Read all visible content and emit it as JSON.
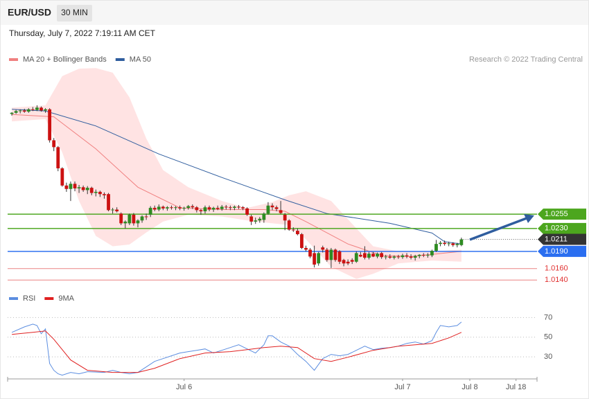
{
  "header": {
    "symbol": "EUR/USD",
    "timeframe": "30 MIN",
    "timestamp": "Thursday, July 7, 2022 7:19:11 AM CET",
    "source": "Research © 2022 Trading Central"
  },
  "chart_data": [
    {
      "type": "candlestick",
      "up_color": "#2e8b22",
      "down_color": "#cc1111",
      "xlim": [
        -1,
        125
      ],
      "ylim": [
        1.0127,
        1.0514
      ],
      "candles": [
        [
          1.043,
          1.0433,
          1.0427,
          1.0432
        ],
        [
          1.0432,
          1.0437,
          1.043,
          1.0435
        ],
        [
          1.0435,
          1.0438,
          1.0431,
          1.0436
        ],
        [
          1.0436,
          1.0439,
          1.0432,
          1.0434
        ],
        [
          1.0434,
          1.044,
          1.0432,
          1.0438
        ],
        [
          1.0438,
          1.0442,
          1.0435,
          1.0437
        ],
        [
          1.0437,
          1.0445,
          1.0435,
          1.0441
        ],
        [
          1.0441,
          1.0443,
          1.0434,
          1.0436
        ],
        [
          1.0436,
          1.044,
          1.0432,
          1.0438
        ],
        [
          1.0438,
          1.044,
          1.038,
          1.0384
        ],
        [
          1.0384,
          1.0388,
          1.0365,
          1.0372
        ],
        [
          1.0372,
          1.0374,
          1.033,
          1.0335
        ],
        [
          1.0335,
          1.0337,
          1.0303,
          1.0305
        ],
        [
          1.0305,
          1.031,
          1.0294,
          1.0299
        ],
        [
          1.0299,
          1.0312,
          1.0278,
          1.0308
        ],
        [
          1.0308,
          1.0312,
          1.0295,
          1.03
        ],
        [
          1.03,
          1.0306,
          1.0292,
          1.0302
        ],
        [
          1.0302,
          1.0305,
          1.0294,
          1.0297
        ],
        [
          1.0297,
          1.0304,
          1.029,
          1.0301
        ],
        [
          1.0301,
          1.0303,
          1.0288,
          1.0292
        ],
        [
          1.0292,
          1.0298,
          1.0286,
          1.0294
        ],
        [
          1.0294,
          1.0296,
          1.0285,
          1.029
        ],
        [
          1.029,
          1.0293,
          1.0282,
          1.0288
        ],
        [
          1.029,
          1.0292,
          1.026,
          1.0262
        ],
        [
          1.0262,
          1.0266,
          1.0256,
          1.0263
        ],
        [
          1.0263,
          1.0267,
          1.0258,
          1.026
        ],
        [
          1.0256,
          1.0258,
          1.0236,
          1.0239
        ],
        [
          1.0239,
          1.0244,
          1.023,
          1.0242
        ],
        [
          1.0239,
          1.0256,
          1.0236,
          1.0254
        ],
        [
          1.0254,
          1.0257,
          1.0235,
          1.0239
        ],
        [
          1.0239,
          1.0246,
          1.0232,
          1.0244
        ],
        [
          1.0244,
          1.0253,
          1.024,
          1.0251
        ],
        [
          1.0251,
          1.0256,
          1.0245,
          1.025
        ],
        [
          1.0254,
          1.0269,
          1.025,
          1.0266
        ],
        [
          1.0266,
          1.027,
          1.026,
          1.0263
        ],
        [
          1.0263,
          1.0272,
          1.026,
          1.0268
        ],
        [
          1.0268,
          1.027,
          1.0262,
          1.0265
        ],
        [
          1.0265,
          1.0269,
          1.0261,
          1.0267
        ],
        [
          1.0267,
          1.027,
          1.0263,
          1.0266
        ],
        [
          1.0266,
          1.0269,
          1.0262,
          1.0267
        ],
        [
          1.0267,
          1.027,
          1.0262,
          1.0265
        ],
        [
          1.0265,
          1.0268,
          1.0261,
          1.0266
        ],
        [
          1.0266,
          1.0271,
          1.0263,
          1.0269
        ],
        [
          1.0269,
          1.0272,
          1.0264,
          1.0267
        ],
        [
          1.0267,
          1.0269,
          1.0258,
          1.0262
        ],
        [
          1.0262,
          1.0264,
          1.0254,
          1.026
        ],
        [
          1.026,
          1.027,
          1.0256,
          1.0267
        ],
        [
          1.0267,
          1.027,
          1.026,
          1.0263
        ],
        [
          1.0263,
          1.0268,
          1.0259,
          1.0266
        ],
        [
          1.0266,
          1.027,
          1.0262,
          1.0264
        ],
        [
          1.0264,
          1.0271,
          1.0261,
          1.0268
        ],
        [
          1.0268,
          1.0271,
          1.0263,
          1.0267
        ],
        [
          1.0267,
          1.027,
          1.0262,
          1.0266
        ],
        [
          1.0266,
          1.027,
          1.0262,
          1.0268
        ],
        [
          1.0268,
          1.0271,
          1.0264,
          1.0267
        ],
        [
          1.0267,
          1.0269,
          1.0262,
          1.0265
        ],
        [
          1.0265,
          1.0267,
          1.0252,
          1.0254
        ],
        [
          1.0251,
          1.0254,
          1.0236,
          1.0242
        ],
        [
          1.0242,
          1.0249,
          1.0238,
          1.0244
        ],
        [
          1.0244,
          1.025,
          1.024,
          1.0247
        ],
        [
          1.0245,
          1.0258,
          1.024,
          1.0256
        ],
        [
          1.0256,
          1.0276,
          1.0254,
          1.027
        ],
        [
          1.027,
          1.0274,
          1.0262,
          1.0267
        ],
        [
          1.0267,
          1.027,
          1.026,
          1.0264
        ],
        [
          1.0262,
          1.0278,
          1.0255,
          1.0257
        ],
        [
          1.0254,
          1.0257,
          1.0227,
          1.0244
        ],
        [
          1.0244,
          1.0246,
          1.0226,
          1.0228
        ],
        [
          1.0228,
          1.0232,
          1.0224,
          1.0227
        ],
        [
          1.0226,
          1.023,
          1.0218,
          1.022
        ],
        [
          1.022,
          1.0222,
          1.0194,
          1.0196
        ],
        [
          1.0196,
          1.02,
          1.019,
          1.0193
        ],
        [
          1.0193,
          1.0196,
          1.0178,
          1.0181
        ],
        [
          1.0187,
          1.02,
          1.0162,
          1.0167
        ],
        [
          1.0169,
          1.0189,
          1.0165,
          1.0187
        ],
        [
          1.0197,
          1.02,
          1.0188,
          1.0193
        ],
        [
          1.0193,
          1.0196,
          1.0172,
          1.0175
        ],
        [
          1.0175,
          1.0196,
          1.0161,
          1.0193
        ],
        [
          1.0193,
          1.0195,
          1.0172,
          1.0175
        ],
        [
          1.019,
          1.0192,
          1.0168,
          1.0172
        ],
        [
          1.0175,
          1.0177,
          1.0164,
          1.0169
        ],
        [
          1.0172,
          1.0176,
          1.0166,
          1.0169
        ],
        [
          1.0175,
          1.0178,
          1.0168,
          1.0172
        ],
        [
          1.0172,
          1.019,
          1.017,
          1.0187
        ],
        [
          1.0184,
          1.0189,
          1.018,
          1.0181
        ],
        [
          1.0187,
          1.0199,
          1.0176,
          1.0179
        ],
        [
          1.0179,
          1.0189,
          1.0176,
          1.0186
        ],
        [
          1.0186,
          1.0189,
          1.018,
          1.0181
        ],
        [
          1.0181,
          1.0188,
          1.0178,
          1.0186
        ],
        [
          1.0187,
          1.0189,
          1.0177,
          1.018
        ],
        [
          1.018,
          1.0184,
          1.0176,
          1.0181
        ],
        [
          1.0181,
          1.0185,
          1.0177,
          1.0179
        ],
        [
          1.0179,
          1.0183,
          1.0176,
          1.0181
        ],
        [
          1.0181,
          1.0184,
          1.0177,
          1.018
        ],
        [
          1.018,
          1.0186,
          1.0177,
          1.0183
        ],
        [
          1.0183,
          1.0187,
          1.0178,
          1.0181
        ],
        [
          1.0181,
          1.0185,
          1.0176,
          1.0179
        ],
        [
          1.0179,
          1.0184,
          1.0174,
          1.0182
        ],
        [
          1.0182,
          1.0185,
          1.0178,
          1.0184
        ],
        [
          1.0184,
          1.0187,
          1.018,
          1.0183
        ],
        [
          1.0183,
          1.0187,
          1.0179,
          1.0184
        ],
        [
          1.0183,
          1.0193,
          1.018,
          1.0191
        ],
        [
          1.0191,
          1.021,
          1.0189,
          1.0203
        ],
        [
          1.0203,
          1.0208,
          1.0199,
          1.0205
        ],
        [
          1.0205,
          1.0209,
          1.02,
          1.0203
        ],
        [
          1.0203,
          1.0207,
          1.0199,
          1.0204
        ],
        [
          1.0204,
          1.0206,
          1.0198,
          1.0201
        ],
        [
          1.0201,
          1.0205,
          1.0197,
          1.0203
        ],
        [
          1.0201,
          1.0214,
          1.0199,
          1.0211
        ]
      ],
      "band": {
        "color": "#ffdcdc",
        "x": [
          0,
          8,
          12,
          16,
          20,
          24,
          28,
          32,
          36,
          42,
          50,
          56,
          62,
          66,
          70,
          76,
          82,
          86,
          92,
          100,
          107
        ],
        "upper": [
          1.0441,
          1.0445,
          1.0496,
          1.0509,
          1.051,
          1.0502,
          1.0459,
          1.0387,
          1.0332,
          1.0302,
          1.0278,
          1.0266,
          1.0276,
          1.0288,
          1.0295,
          1.0278,
          1.023,
          1.0199,
          1.019,
          1.019,
          1.0193
        ],
        "lower": [
          1.0417,
          1.0421,
          1.0363,
          1.0278,
          1.0217,
          1.0199,
          1.0202,
          1.0223,
          1.0242,
          1.0254,
          1.0251,
          1.0244,
          1.0239,
          1.0236,
          1.0211,
          1.0163,
          1.0142,
          1.0151,
          1.0169,
          1.0174,
          1.0172
        ]
      },
      "series": [
        {
          "name": "MA 20 + Bollinger Bands",
          "color": "#f08080",
          "x": [
            0,
            10,
            20,
            30,
            40,
            50,
            60,
            65,
            70,
            80,
            88,
            95,
            107
          ],
          "values": [
            1.0429,
            1.0425,
            1.0369,
            1.0302,
            1.0266,
            1.0263,
            1.0263,
            1.026,
            1.0242,
            1.0203,
            1.0183,
            1.0181,
            1.019
          ]
        },
        {
          "name": "MA 50",
          "color": "#2f5d9e",
          "x": [
            0,
            8,
            20,
            35,
            50,
            65,
            75,
            90,
            100,
            103,
            107
          ],
          "values": [
            1.0438,
            1.0435,
            1.0409,
            1.036,
            1.0319,
            1.028,
            1.0256,
            1.0239,
            1.0222,
            1.0207,
            1.0203
          ]
        }
      ],
      "levels": [
        {
          "value": 1.0255,
          "label": "1.0255",
          "color": "#4ca61e",
          "style": "box"
        },
        {
          "value": 1.023,
          "label": "1.0230",
          "color": "#4ca61e",
          "style": "box"
        },
        {
          "value": 1.0211,
          "label": "1.0211",
          "color": "#333333",
          "style": "box",
          "line": "dotted"
        },
        {
          "value": 1.019,
          "label": "1.0190",
          "color": "#2a6ef0",
          "style": "box"
        },
        {
          "value": 1.016,
          "label": "1.0160",
          "color": "#e03030",
          "style": "text"
        },
        {
          "value": 1.014,
          "label": "1.0140",
          "color": "#e03030",
          "style": "text"
        }
      ]
    },
    {
      "type": "line",
      "xlim": [
        -1,
        125
      ],
      "ylim": [
        9,
        78
      ],
      "yticks": [
        30,
        50,
        70
      ],
      "grid": true,
      "xticks": [
        {
          "value": 41,
          "label": "Jul 6"
        },
        {
          "value": 93,
          "label": "Jul 7"
        },
        {
          "value": 109,
          "label": "Jul 8"
        },
        {
          "value": 120,
          "label": "Jul 18"
        }
      ],
      "series": [
        {
          "name": "RSI",
          "color": "#5b8de0",
          "x": [
            0,
            3,
            5,
            6,
            7,
            8,
            9,
            10,
            11,
            12,
            14,
            16,
            18,
            22,
            24,
            26,
            28,
            30,
            32,
            34,
            36,
            38,
            40,
            42,
            44,
            46,
            48,
            50,
            52,
            54,
            56,
            58,
            60,
            61,
            62,
            64,
            66,
            68,
            70,
            72,
            74,
            76,
            78,
            80,
            82,
            84,
            86,
            88,
            90,
            92,
            94,
            96,
            98,
            100,
            101,
            102,
            104,
            106,
            107
          ],
          "values": [
            54.9,
            60.5,
            63.3,
            61.9,
            53.5,
            58.4,
            23.3,
            16.3,
            12.8,
            11.4,
            14.2,
            12.8,
            14.9,
            14.2,
            16.3,
            14.2,
            12.8,
            14.2,
            19.8,
            25.4,
            28.2,
            31.1,
            33.9,
            35.3,
            36.7,
            38.1,
            33.9,
            36.7,
            39.5,
            42.3,
            38.1,
            33.9,
            42.3,
            51.4,
            51.4,
            45.1,
            40.9,
            32.5,
            25.4,
            16.3,
            28.2,
            32.5,
            31.1,
            32.5,
            36.7,
            40.9,
            37.4,
            38.8,
            39.5,
            40.9,
            43.7,
            45.1,
            43.0,
            46.5,
            54.9,
            61.9,
            60.5,
            61.9,
            65.4
          ]
        },
        {
          "name": "9MA",
          "color": "#e02020",
          "x": [
            0,
            5,
            8,
            10,
            14,
            18,
            24,
            30,
            34,
            40,
            46,
            52,
            56,
            60,
            64,
            68,
            72,
            76,
            80,
            86,
            92,
            100,
            104,
            107
          ],
          "values": [
            52.8,
            54.9,
            56.3,
            47.9,
            26.8,
            16.3,
            14.2,
            14.2,
            18.4,
            28.2,
            33.9,
            35.3,
            37.4,
            39.5,
            40.9,
            39.5,
            28.2,
            25.4,
            29.6,
            36.7,
            40.9,
            43.7,
            49.3,
            54.9
          ]
        }
      ]
    }
  ]
}
